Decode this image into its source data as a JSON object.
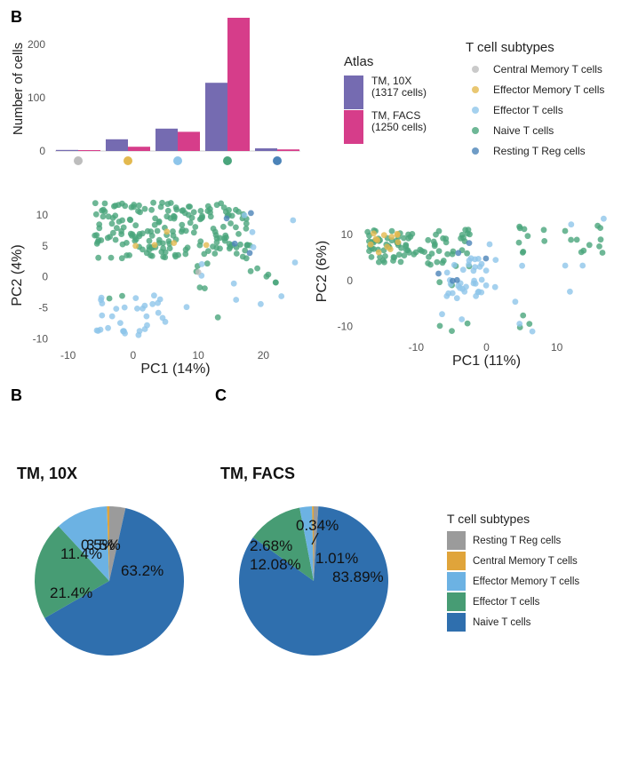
{
  "colors": {
    "central_memory": "#bdbdbd",
    "effector_memory": "#e3b94f",
    "effector": "#8ec5ea",
    "naive": "#4aa57c",
    "resting_treg": "#4b83b8",
    "tm_10x": "#756bb1",
    "tm_facs": "#d63d8a",
    "pie_resting_treg": "#9b9b9b",
    "pie_central_memory": "#e0a43a",
    "pie_effector_memory": "#6cb2e3",
    "pie_effector": "#479c74",
    "pie_naive": "#2f6fae"
  },
  "panel_labels": {
    "top": "B",
    "bottom_left": "B",
    "bottom_right": "C"
  },
  "chart_data": [
    {
      "type": "bar",
      "ylabel": "Number of cells",
      "yticks": [
        "0",
        "100",
        "200"
      ],
      "ylim": [
        0,
        250
      ],
      "categories": [
        "Central Memory T cells",
        "Effector Memory T cells",
        "Effector T cells",
        "Naive T cells",
        "Resting T Reg cells"
      ],
      "category_icons": [
        "grey-dot",
        "orange-dot",
        "lightblue-dot",
        "green-dot",
        "blue-dot"
      ],
      "series": [
        {
          "name": "TM, 10X\n(1317 cells)",
          "values": [
            2,
            22,
            42,
            128,
            5
          ]
        },
        {
          "name": "TM, FACS\n(1250 cells)",
          "values": [
            1,
            8,
            36,
            250,
            3
          ]
        }
      ],
      "legend_title": "Atlas",
      "legend_labels": [
        [
          "TM, 10X",
          "(1317 cells)"
        ],
        [
          "TM, FACS",
          "(1250 cells)"
        ]
      ]
    },
    {
      "type": "scatter",
      "xlabel": "PC1 (14%)",
      "ylabel": "PC2 (4%)",
      "xticks": [
        -10,
        0,
        10,
        20
      ],
      "yticks": [
        -10,
        -5,
        0,
        5,
        10
      ],
      "xlim": [
        -12,
        25
      ],
      "ylim": [
        -11.5,
        12
      ],
      "clusters": [
        {
          "subtype": "naive",
          "n": 190,
          "x": [
            -6,
            18
          ],
          "y": [
            3,
            12
          ]
        },
        {
          "subtype": "naive",
          "n": 10,
          "x": [
            8,
            23
          ],
          "y": [
            -2,
            4
          ]
        },
        {
          "subtype": "naive",
          "n": 4,
          "x": [
            -11,
            26
          ],
          "y": [
            -8,
            4
          ]
        },
        {
          "subtype": "effector",
          "n": 32,
          "x": [
            -6,
            5
          ],
          "y": [
            -9.5,
            -3
          ]
        },
        {
          "subtype": "effector",
          "n": 12,
          "x": [
            0,
            26
          ],
          "y": [
            -6,
            10
          ]
        },
        {
          "subtype": "effector_memory",
          "n": 5,
          "x": [
            -2,
            16
          ],
          "y": [
            4,
            9
          ]
        },
        {
          "subtype": "central_memory",
          "n": 1,
          "x": [
            10,
            10.5
          ],
          "y": [
            0.5,
            1
          ]
        },
        {
          "subtype": "resting_treg",
          "n": 4,
          "x": [
            14,
            19
          ],
          "y": [
            -0.8,
            10.5
          ]
        }
      ],
      "legend_title": "T cell subtypes",
      "legend_labels": [
        "Central Memory T cells",
        "Effector Memory T cells",
        "Effector T cells",
        "Naive T cells",
        "Resting T Reg cells"
      ]
    },
    {
      "type": "scatter",
      "xlabel": "PC1 (11%)",
      "ylabel": "PC2 (6%)",
      "xticks": [
        -10,
        0,
        10
      ],
      "yticks": [
        -10,
        0,
        10
      ],
      "xlim": [
        -18,
        18
      ],
      "ylim": [
        -13,
        17
      ],
      "clusters": [
        {
          "subtype": "naive",
          "n": 55,
          "x": [
            -17,
            -10
          ],
          "y": [
            4,
            11
          ]
        },
        {
          "subtype": "naive",
          "n": 35,
          "x": [
            -10,
            -2
          ],
          "y": [
            3,
            12
          ]
        },
        {
          "subtype": "naive",
          "n": 20,
          "x": [
            3,
            17
          ],
          "y": [
            6,
            12
          ]
        },
        {
          "subtype": "naive",
          "n": 8,
          "x": [
            -10,
            10
          ],
          "y": [
            -12,
            0
          ]
        },
        {
          "subtype": "effector",
          "n": 30,
          "x": [
            -6,
            0
          ],
          "y": [
            -4,
            5
          ]
        },
        {
          "subtype": "effector",
          "n": 18,
          "x": [
            -8,
            18
          ],
          "y": [
            -12,
            15
          ]
        },
        {
          "subtype": "effector_memory",
          "n": 12,
          "x": [
            -17,
            -12
          ],
          "y": [
            6,
            11
          ]
        },
        {
          "subtype": "resting_treg",
          "n": 6,
          "x": [
            -7,
            0
          ],
          "y": [
            -1,
            9
          ]
        }
      ]
    },
    {
      "type": "pie",
      "title": "TM, 10X",
      "slices": [
        {
          "label": "Resting T Reg cells",
          "value": 3.5,
          "color_key": "pie_resting_treg",
          "text": "3.5%"
        },
        {
          "label": "Naive T cells",
          "value": 63.2,
          "color_key": "pie_naive",
          "text": "63.2%"
        },
        {
          "label": "Effector T cells",
          "value": 21.4,
          "color_key": "pie_effector",
          "text": "21.4%"
        },
        {
          "label": "Effector Memory T cells",
          "value": 11.4,
          "color_key": "pie_effector_memory",
          "text": "11.4%"
        },
        {
          "label": "Central Memory T cells",
          "value": 0.5,
          "color_key": "pie_central_memory",
          "text": "0.5%"
        }
      ]
    },
    {
      "type": "pie",
      "title": "TM, FACS",
      "slices": [
        {
          "label": "Resting T Reg cells",
          "value": 1.01,
          "color_key": "pie_resting_treg",
          "text": "1.01%"
        },
        {
          "label": "Naive T cells",
          "value": 83.89,
          "color_key": "pie_naive",
          "text": "83.89%"
        },
        {
          "label": "Effector T cells",
          "value": 12.08,
          "color_key": "pie_effector",
          "text": "12.08%"
        },
        {
          "label": "Effector Memory T cells",
          "value": 2.68,
          "color_key": "pie_effector_memory",
          "text": "2.68%"
        },
        {
          "label": "Central Memory T cells",
          "value": 0.34,
          "color_key": "pie_central_memory",
          "text": "0.34%"
        }
      ],
      "legend_title": "T cell subtypes",
      "legend_labels": [
        "Resting T Reg cells",
        "Central Memory T cells",
        "Effector Memory T cells",
        "Effector T cells",
        "Naive T cells"
      ]
    }
  ]
}
